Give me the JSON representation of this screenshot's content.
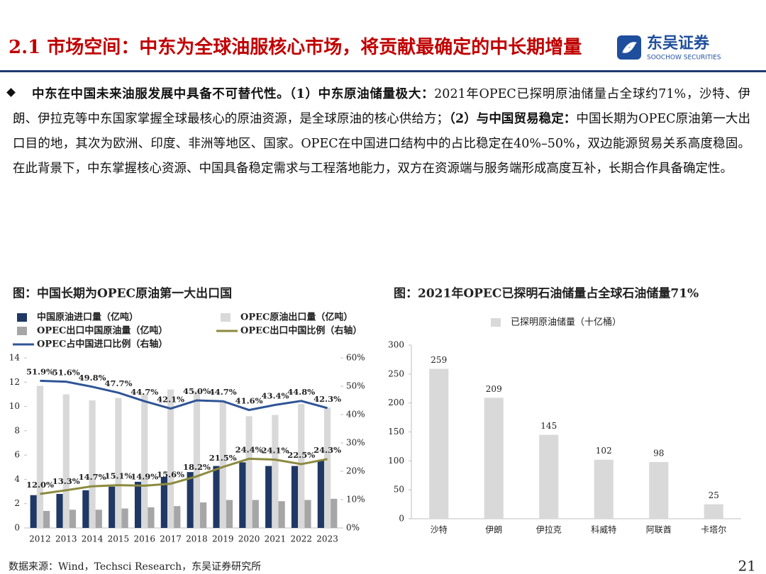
{
  "header": {
    "title": "2.1 市场空间：中东为全球油服核心市场，将贡献最确定的中长期增量",
    "logo_name": "东吴证券",
    "logo_sub": "SOOCHOW SECURITIES"
  },
  "body": {
    "segments": [
      {
        "text": "中东在中国未来油服发展中具备不可替代性。（1）中东原油储量极大：",
        "bold": true
      },
      {
        "text": "2021年OPEC已探明原油储量占全球约71%，沙特、伊朗、伊拉克等中东国家掌握全球最核心的原油资源，是全球原油的核心供给方；",
        "bold": false
      },
      {
        "text": "（2）与中国贸易稳定：",
        "bold": true
      },
      {
        "text": "中国长期为OPEC原油第一大出口目的地，其次为欧洲、印度、非洲等地区、国家。OPEC在中国进口结构中的占比稳定在40%–50%，双边能源贸易关系高度稳固。在此背景下，中东掌握核心资源、中国具备稳定需求与工程落地能力，双方在资源端与服务端形成高度互补，长期合作具备确定性。",
        "bold": false
      }
    ]
  },
  "chart_data": [
    {
      "type": "bar",
      "title": "图：中国长期为OPEC原油第一大出口国",
      "categories": [
        "2012",
        "2013",
        "2014",
        "2015",
        "2016",
        "2017",
        "2018",
        "2019",
        "2020",
        "2021",
        "2022",
        "2023"
      ],
      "ylim": [
        0,
        14
      ],
      "yticks": [
        0,
        2,
        4,
        6,
        8,
        10,
        12,
        14
      ],
      "y2lim": [
        0,
        60
      ],
      "y2ticks": [
        {
          "value": 0,
          "label": "0%"
        },
        {
          "value": 10,
          "label": "10%"
        },
        {
          "value": 20,
          "label": "20%"
        },
        {
          "value": 30,
          "label": "30%"
        },
        {
          "value": 40,
          "label": "40%"
        },
        {
          "value": 50,
          "label": "50%"
        },
        {
          "value": 60,
          "label": "60%"
        }
      ],
      "series": [
        {
          "name": "中国原油进口量（亿吨）",
          "type": "bar",
          "color": "#1f3864",
          "values": [
            2.7,
            2.8,
            3.1,
            3.4,
            3.8,
            4.2,
            4.6,
            5.1,
            5.4,
            5.1,
            5.1,
            5.6
          ]
        },
        {
          "name": "OPEC原油出口量（亿吨）",
          "type": "bar",
          "color": "#d9d9d9",
          "values": [
            11.7,
            11.0,
            10.5,
            10.7,
            11.0,
            11.4,
            11.3,
            10.5,
            9.2,
            9.3,
            10.2,
            9.9
          ]
        },
        {
          "name": "OPEC出口中国原油量（亿吨）",
          "type": "bar",
          "color": "#a6a6a6",
          "values": [
            1.4,
            1.5,
            1.5,
            1.6,
            1.7,
            1.8,
            2.1,
            2.3,
            2.3,
            2.2,
            2.3,
            2.4
          ]
        },
        {
          "name": "OPEC出口中国比例（右轴）",
          "type": "line",
          "axis": "y2",
          "color": "#8c8a3e",
          "values": [
            12.0,
            13.3,
            14.7,
            15.1,
            14.9,
            15.6,
            18.2,
            21.5,
            24.4,
            24.1,
            22.5,
            24.3
          ],
          "value_labels": [
            "12.0%",
            "13.3%",
            "14.7%",
            "15.1%",
            "14.9%",
            "15.6%",
            "18.2%",
            "21.5%",
            "24.4%",
            "24.1%",
            "22.5%",
            "24.3%"
          ]
        },
        {
          "name": "OPEC占中国进口比例（右轴）",
          "type": "line",
          "axis": "y2",
          "color": "#2f5597",
          "values": [
            51.9,
            51.6,
            49.8,
            47.7,
            44.7,
            42.1,
            45.0,
            44.7,
            41.6,
            43.4,
            44.8,
            42.3
          ],
          "value_labels": [
            "51.9%",
            "51.6%",
            "49.8%",
            "47.7%",
            "44.7%",
            "42.1%",
            "45.0%",
            "44.7%",
            "41.6%",
            "43.4%",
            "44.8%",
            "42.3%"
          ]
        }
      ]
    },
    {
      "type": "bar",
      "title": "图：2021年OPEC已探明石油储量占全球石油储量71%",
      "categories": [
        "沙特",
        "伊朗",
        "伊拉克",
        "科威特",
        "阿联酋",
        "卡塔尔"
      ],
      "ylim": [
        0,
        300
      ],
      "yticks": [
        0,
        50,
        100,
        150,
        200,
        250,
        300
      ],
      "series": [
        {
          "name": "已探明原油储量（十亿桶）",
          "type": "bar",
          "color": "#d9d9d9",
          "data_labels": true,
          "values": [
            259,
            209,
            145,
            102,
            98,
            25
          ]
        }
      ]
    }
  ],
  "footer": {
    "source": "数据来源：Wind，Techsci Research，东吴证券研究所",
    "page": "21"
  }
}
